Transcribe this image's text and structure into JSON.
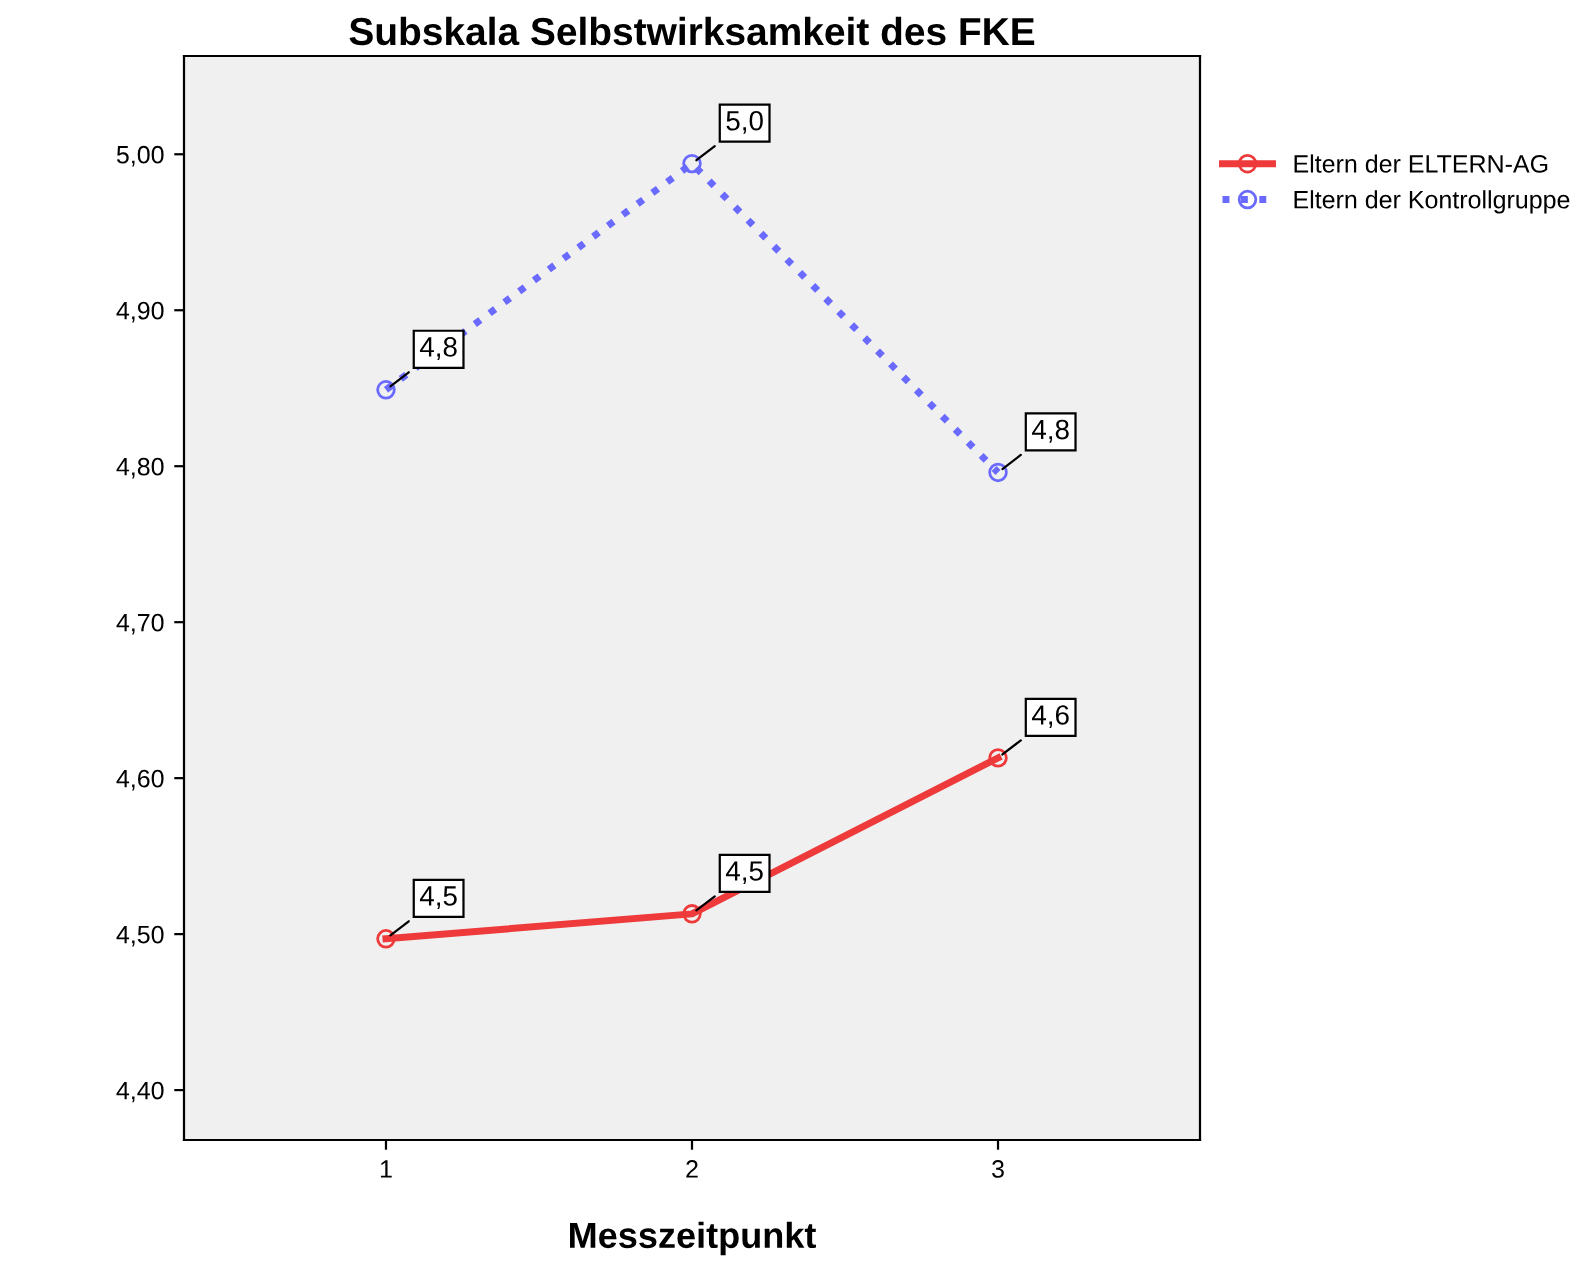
{
  "chart_data": {
    "type": "line",
    "title": "Subskala Selbstwirksamkeit des FKE",
    "xlabel": "Messzeitpunkt",
    "x": [
      1,
      2,
      3
    ],
    "xlim": [
      0.34,
      3.66
    ],
    "xticks": [
      1,
      2,
      3
    ],
    "ylim": [
      4.368,
      5.063
    ],
    "yticks": [
      {
        "value": 4.4,
        "label": "4,40"
      },
      {
        "value": 4.5,
        "label": "4,50"
      },
      {
        "value": 4.6,
        "label": "4,60"
      },
      {
        "value": 4.7,
        "label": "4,70"
      },
      {
        "value": 4.8,
        "label": "4,80"
      },
      {
        "value": 4.9,
        "label": "4,90"
      },
      {
        "value": 5.0,
        "label": "5,00"
      }
    ],
    "series": [
      {
        "name": "Eltern der ELTERN-AG",
        "color": "#ee3a3a",
        "line_style": "solid",
        "values": [
          4.497,
          4.513,
          4.613
        ],
        "value_labels": [
          "4,5",
          "4,5",
          "4,6"
        ]
      },
      {
        "name": "Eltern der Kontrollgruppe",
        "color": "#6a6aff",
        "line_style": "dotted",
        "values": [
          4.849,
          4.994,
          4.796
        ],
        "value_labels": [
          "4,8",
          "5,0",
          "4,8"
        ]
      }
    ],
    "marker": "circle",
    "grid": false,
    "legend": "top right"
  }
}
